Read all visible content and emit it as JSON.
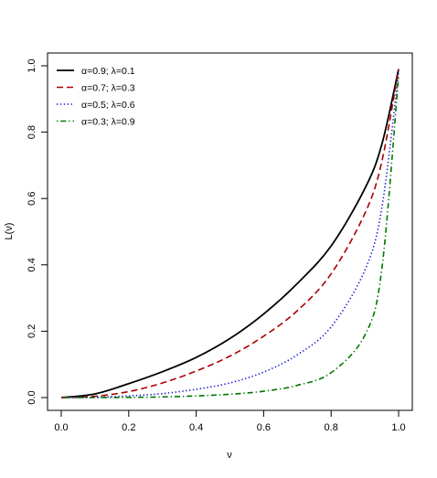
{
  "chart_data": {
    "type": "line",
    "xlabel": "ν",
    "ylabel": "L(ν)",
    "xlim": [
      0,
      1
    ],
    "ylim": [
      0,
      1
    ],
    "x_ticks": [
      "0.0",
      "0.2",
      "0.4",
      "0.6",
      "0.8",
      "1.0"
    ],
    "y_ticks": [
      "0.0",
      "0.2",
      "0.4",
      "0.6",
      "0.8",
      "1.0"
    ],
    "grid": false,
    "legend_position": "top-left",
    "x": [
      0.0,
      0.1,
      0.2,
      0.3,
      0.4,
      0.5,
      0.6,
      0.7,
      0.8,
      0.9,
      0.95,
      1.0
    ],
    "series": [
      {
        "name": "α=0.9; λ=0.1",
        "style": "solid",
        "color": "#000000",
        "values": [
          0.0,
          0.011,
          0.042,
          0.078,
          0.121,
          0.178,
          0.252,
          0.344,
          0.457,
          0.63,
          0.762,
          0.99
        ]
      },
      {
        "name": "α=0.7; λ=0.3",
        "style": "dashed",
        "color": "#aa0000",
        "values": [
          0.0,
          0.004,
          0.018,
          0.044,
          0.08,
          0.125,
          0.185,
          0.262,
          0.373,
          0.555,
          0.71,
          0.99
        ]
      },
      {
        "name": "α=0.5; λ=0.6",
        "style": "dotted",
        "color": "#1010cc",
        "values": [
          0.0,
          0.001,
          0.005,
          0.012,
          0.025,
          0.044,
          0.077,
          0.129,
          0.213,
          0.384,
          0.57,
          0.98
        ]
      },
      {
        "name": "α=0.3; λ=0.9",
        "style": "dotdash",
        "color": "#007700",
        "values": [
          0.0,
          0.0,
          0.0005,
          0.002,
          0.005,
          0.01,
          0.019,
          0.037,
          0.075,
          0.188,
          0.385,
          0.97
        ]
      }
    ]
  }
}
